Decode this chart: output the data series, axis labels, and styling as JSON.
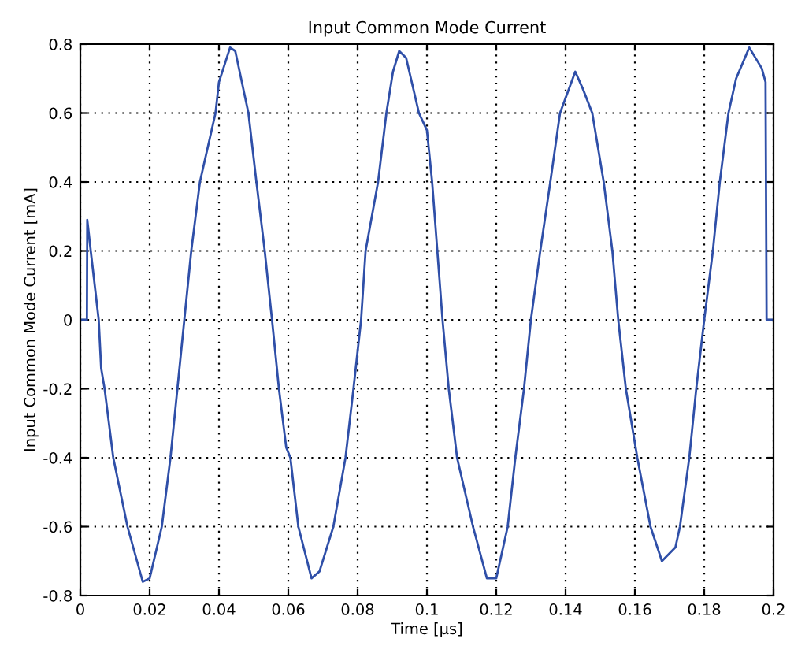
{
  "chart_data": {
    "type": "line",
    "title": "Input Common Mode Current",
    "xlabel": "Time [µs]",
    "ylabel": "Input Common Mode Current [mA]",
    "xlim": [
      0,
      0.2
    ],
    "xticks": [
      0,
      0.02,
      0.04,
      0.06,
      0.08,
      0.1,
      0.12,
      0.14,
      0.16,
      0.18,
      0.2
    ],
    "ylim": [
      -0.8,
      0.8
    ],
    "yticks": [
      -0.8,
      -0.6,
      -0.4,
      -0.2,
      0,
      0.2,
      0.4,
      0.6,
      0.8
    ],
    "grid": true,
    "line_style": "solid",
    "marker": "none",
    "series": [
      {
        "color": "#2f4fa8",
        "x": [
          0,
          0.0019,
          0.002,
          0.003,
          0.0053,
          0.006,
          0.007,
          0.0095,
          0.0136,
          0.018,
          0.02,
          0.0235,
          0.026,
          0.028,
          0.03,
          0.032,
          0.0345,
          0.039,
          0.04,
          0.0432,
          0.0447,
          0.0485,
          0.0508,
          0.0532,
          0.0553,
          0.0573,
          0.0594,
          0.0606,
          0.0629,
          0.0667,
          0.069,
          0.073,
          0.0765,
          0.0788,
          0.081,
          0.0823,
          0.0859,
          0.0883,
          0.0902,
          0.092,
          0.094,
          0.0977,
          0.1,
          0.1015,
          0.103,
          0.1045,
          0.1063,
          0.1087,
          0.1133,
          0.1173,
          0.12,
          0.1233,
          0.1255,
          0.128,
          0.13,
          0.1327,
          0.1356,
          0.1384,
          0.1428,
          0.145,
          0.1477,
          0.151,
          0.1535,
          0.1552,
          0.1574,
          0.1607,
          0.1645,
          0.1678,
          0.1717,
          0.173,
          0.1757,
          0.1777,
          0.18,
          0.1825,
          0.1845,
          0.187,
          0.1892,
          0.193,
          0.1966,
          0.1977,
          0.198,
          0.2
        ],
        "values": [
          0,
          0,
          0.29,
          0.2,
          0,
          -0.14,
          -0.2,
          -0.4,
          -0.6,
          -0.76,
          -0.75,
          -0.6,
          -0.4,
          -0.2,
          0,
          0.2,
          0.4,
          0.6,
          0.69,
          0.79,
          0.78,
          0.6,
          0.4,
          0.2,
          0,
          -0.2,
          -0.37,
          -0.4,
          -0.6,
          -0.75,
          -0.73,
          -0.6,
          -0.4,
          -0.2,
          0,
          0.2,
          0.4,
          0.6,
          0.72,
          0.78,
          0.76,
          0.6,
          0.55,
          0.4,
          0.2,
          0,
          -0.2,
          -0.4,
          -0.6,
          -0.75,
          -0.75,
          -0.6,
          -0.4,
          -0.2,
          0,
          0.2,
          0.4,
          0.6,
          0.72,
          0.67,
          0.6,
          0.4,
          0.2,
          0,
          -0.2,
          -0.4,
          -0.6,
          -0.7,
          -0.66,
          -0.6,
          -0.4,
          -0.2,
          0,
          0.2,
          0.4,
          0.6,
          0.7,
          0.79,
          0.73,
          0.69,
          0,
          0
        ]
      }
    ]
  }
}
